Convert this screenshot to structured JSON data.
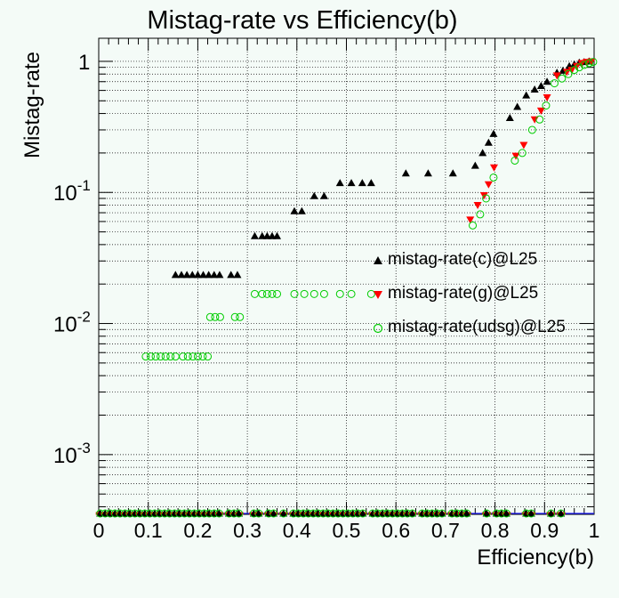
{
  "chart_data": {
    "type": "scatter",
    "title": "Mistag-rate vs Efficiency(b)",
    "xlabel": "Efficiency(b)",
    "ylabel": "Mistag-rate",
    "xlim": [
      0,
      1
    ],
    "ylim": [
      0.00035,
      1.5
    ],
    "y_scale": "log",
    "grid": true,
    "legend_position": "right",
    "x_ticks": [
      "0",
      "0.1",
      "0.2",
      "0.3",
      "0.4",
      "0.5",
      "0.6",
      "0.7",
      "0.8",
      "0.9",
      "1"
    ],
    "y_ticks": [
      {
        "value": 1,
        "base": "1",
        "exp": ""
      },
      {
        "value": 0.1,
        "base": "10",
        "exp": "-1"
      },
      {
        "value": 0.01,
        "base": "10",
        "exp": "-2"
      },
      {
        "value": 0.001,
        "base": "10",
        "exp": "-3"
      }
    ],
    "series": [
      {
        "name": "mistag-rate(c)@L25",
        "marker": "triangle-up",
        "color": "#000000",
        "fill": true,
        "points": [
          [
            0.155,
            0.0235
          ],
          [
            0.167,
            0.0235
          ],
          [
            0.178,
            0.0235
          ],
          [
            0.189,
            0.0235
          ],
          [
            0.2,
            0.0235
          ],
          [
            0.211,
            0.0235
          ],
          [
            0.222,
            0.0235
          ],
          [
            0.233,
            0.0235
          ],
          [
            0.244,
            0.0235
          ],
          [
            0.267,
            0.0235
          ],
          [
            0.28,
            0.0235
          ],
          [
            0.315,
            0.0465
          ],
          [
            0.33,
            0.0465
          ],
          [
            0.34,
            0.0465
          ],
          [
            0.35,
            0.0465
          ],
          [
            0.36,
            0.0465
          ],
          [
            0.395,
            0.072
          ],
          [
            0.41,
            0.072
          ],
          [
            0.435,
            0.094
          ],
          [
            0.455,
            0.094
          ],
          [
            0.487,
            0.118
          ],
          [
            0.51,
            0.118
          ],
          [
            0.532,
            0.118
          ],
          [
            0.55,
            0.118
          ],
          [
            0.62,
            0.14
          ],
          [
            0.665,
            0.14
          ],
          [
            0.715,
            0.14
          ],
          [
            0.76,
            0.16
          ],
          [
            0.775,
            0.2
          ],
          [
            0.787,
            0.24
          ],
          [
            0.797,
            0.28
          ],
          [
            0.83,
            0.37
          ],
          [
            0.845,
            0.45
          ],
          [
            0.863,
            0.55
          ],
          [
            0.88,
            0.61
          ],
          [
            0.893,
            0.65
          ],
          [
            0.905,
            0.7
          ],
          [
            0.925,
            0.82
          ],
          [
            0.937,
            0.85
          ],
          [
            0.95,
            0.92
          ],
          [
            0.96,
            0.95
          ],
          [
            0.97,
            0.98
          ],
          [
            0.98,
            0.99
          ],
          [
            0.99,
            1.0
          ]
        ]
      },
      {
        "name": "mistag-rate(g)@L25",
        "marker": "triangle-down",
        "color": "#ff0000",
        "fill": true,
        "points": [
          [
            0.75,
            0.062
          ],
          [
            0.765,
            0.08
          ],
          [
            0.778,
            0.095
          ],
          [
            0.787,
            0.115
          ],
          [
            0.798,
            0.155
          ],
          [
            0.842,
            0.19
          ],
          [
            0.858,
            0.23
          ],
          [
            0.88,
            0.36
          ],
          [
            0.893,
            0.42
          ],
          [
            0.905,
            0.53
          ],
          [
            0.925,
            0.78
          ],
          [
            0.945,
            0.83
          ],
          [
            0.955,
            0.86
          ],
          [
            0.965,
            0.92
          ],
          [
            0.975,
            0.97
          ],
          [
            0.985,
            0.99
          ],
          [
            0.995,
            1.0
          ]
        ]
      },
      {
        "name": "mistag-rate(udsg)@L25",
        "marker": "circle-open",
        "color": "#00cc00",
        "fill": false,
        "points": [
          [
            0.095,
            0.0056
          ],
          [
            0.105,
            0.0056
          ],
          [
            0.115,
            0.0056
          ],
          [
            0.125,
            0.0056
          ],
          [
            0.135,
            0.0056
          ],
          [
            0.145,
            0.0056
          ],
          [
            0.155,
            0.0056
          ],
          [
            0.17,
            0.0056
          ],
          [
            0.18,
            0.0056
          ],
          [
            0.19,
            0.0056
          ],
          [
            0.2,
            0.0056
          ],
          [
            0.21,
            0.0056
          ],
          [
            0.22,
            0.0056
          ],
          [
            0.225,
            0.0112
          ],
          [
            0.235,
            0.0112
          ],
          [
            0.245,
            0.0112
          ],
          [
            0.275,
            0.0112
          ],
          [
            0.285,
            0.0112
          ],
          [
            0.315,
            0.0168
          ],
          [
            0.33,
            0.0168
          ],
          [
            0.34,
            0.0168
          ],
          [
            0.35,
            0.0168
          ],
          [
            0.36,
            0.0168
          ],
          [
            0.395,
            0.0168
          ],
          [
            0.415,
            0.0168
          ],
          [
            0.435,
            0.0168
          ],
          [
            0.455,
            0.0168
          ],
          [
            0.487,
            0.0168
          ],
          [
            0.51,
            0.0168
          ],
          [
            0.55,
            0.0168
          ],
          [
            0.755,
            0.056
          ],
          [
            0.77,
            0.068
          ],
          [
            0.782,
            0.09
          ],
          [
            0.797,
            0.13
          ],
          [
            0.84,
            0.175
          ],
          [
            0.855,
            0.2
          ],
          [
            0.875,
            0.3
          ],
          [
            0.89,
            0.36
          ],
          [
            0.903,
            0.46
          ],
          [
            0.92,
            0.68
          ],
          [
            0.935,
            0.74
          ],
          [
            0.948,
            0.8
          ],
          [
            0.96,
            0.86
          ],
          [
            0.97,
            0.9
          ],
          [
            0.98,
            0.94
          ],
          [
            0.99,
            0.97
          ],
          [
            0.998,
            0.99
          ]
        ]
      }
    ],
    "baseline_x": [
      0.003,
      0.013,
      0.023,
      0.033,
      0.043,
      0.053,
      0.063,
      0.073,
      0.083,
      0.093,
      0.103,
      0.113,
      0.123,
      0.133,
      0.143,
      0.153,
      0.163,
      0.173,
      0.183,
      0.193,
      0.203,
      0.213,
      0.223,
      0.233,
      0.243,
      0.263,
      0.273,
      0.283,
      0.313,
      0.323,
      0.343,
      0.353,
      0.373,
      0.393,
      0.403,
      0.413,
      0.423,
      0.433,
      0.443,
      0.453,
      0.463,
      0.473,
      0.483,
      0.493,
      0.503,
      0.513,
      0.523,
      0.533,
      0.553,
      0.563,
      0.573,
      0.583,
      0.593,
      0.603,
      0.613,
      0.623,
      0.633,
      0.653,
      0.663,
      0.673,
      0.683,
      0.693,
      0.713,
      0.723,
      0.733,
      0.743,
      0.783,
      0.803,
      0.813,
      0.823,
      0.863,
      0.873,
      0.913,
      0.933
    ]
  }
}
